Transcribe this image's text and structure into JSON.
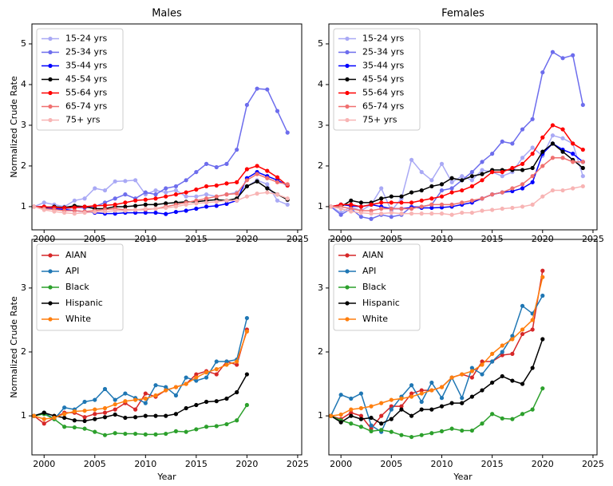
{
  "chart_data": [
    {
      "type": "line",
      "title": "Males",
      "ylabel": "Normalized Crude Rate",
      "x": [
        1999,
        2000,
        2001,
        2002,
        2003,
        2004,
        2005,
        2006,
        2007,
        2008,
        2009,
        2010,
        2011,
        2012,
        2013,
        2014,
        2015,
        2016,
        2017,
        2018,
        2019,
        2020,
        2021,
        2022,
        2023,
        2024
      ],
      "xlim": [
        1998.8,
        2025.4
      ],
      "xticks": [
        2000,
        2005,
        2010,
        2015,
        2020,
        2025
      ],
      "ylim": [
        0.43,
        5.49
      ],
      "yticks": [
        1,
        2,
        3,
        4,
        5
      ],
      "legend": "upper left",
      "series": [
        {
          "name": "15-24 yrs",
          "color": "#a9a9f5",
          "values": [
            1,
            1.1,
            1.05,
            1.0,
            1.15,
            1.2,
            1.45,
            1.4,
            1.62,
            1.63,
            1.65,
            1.3,
            1.4,
            1.35,
            1.4,
            1.25,
            1.25,
            1.3,
            1.25,
            1.3,
            1.35,
            1.5,
            1.65,
            1.55,
            1.15,
            1.05
          ]
        },
        {
          "name": "25-34 yrs",
          "color": "#6d6ded",
          "values": [
            1,
            1.0,
            0.98,
            0.95,
            0.98,
            0.97,
            1.0,
            1.1,
            1.2,
            1.3,
            1.2,
            1.35,
            1.3,
            1.45,
            1.5,
            1.65,
            1.85,
            2.05,
            1.97,
            2.05,
            2.4,
            3.5,
            3.9,
            3.88,
            3.35,
            2.82
          ]
        },
        {
          "name": "35-44 yrs",
          "color": "#0000ff",
          "values": [
            1,
            0.97,
            0.95,
            0.93,
            0.9,
            0.88,
            0.85,
            0.83,
            0.83,
            0.85,
            0.85,
            0.85,
            0.85,
            0.82,
            0.87,
            0.9,
            0.95,
            1.0,
            1.02,
            1.07,
            1.15,
            1.7,
            1.85,
            1.75,
            1.65,
            1.52
          ]
        },
        {
          "name": "45-54 yrs",
          "color": "#000000",
          "values": [
            1,
            0.98,
            1.0,
            0.98,
            1.02,
            1.0,
            0.95,
            0.95,
            1.0,
            1.0,
            1.02,
            1.05,
            1.05,
            1.08,
            1.1,
            1.12,
            1.12,
            1.15,
            1.17,
            1.15,
            1.2,
            1.5,
            1.62,
            1.45,
            1.3,
            1.17
          ]
        },
        {
          "name": "55-64 yrs",
          "color": "#ff0000",
          "values": [
            1,
            1.0,
            0.98,
            0.97,
            0.98,
            1.0,
            1.02,
            1.03,
            1.05,
            1.1,
            1.15,
            1.17,
            1.2,
            1.25,
            1.3,
            1.35,
            1.42,
            1.5,
            1.52,
            1.57,
            1.6,
            1.92,
            2.0,
            1.88,
            1.72,
            1.52
          ]
        },
        {
          "name": "65-74 yrs",
          "color": "#f07070",
          "values": [
            1,
            0.95,
            0.93,
            0.9,
            0.9,
            0.88,
            0.9,
            0.93,
            0.95,
            0.92,
            0.92,
            0.93,
            0.95,
            1.0,
            1.05,
            1.1,
            1.15,
            1.2,
            1.25,
            1.3,
            1.32,
            1.65,
            1.8,
            1.7,
            1.6,
            1.55
          ]
        },
        {
          "name": "75+ yrs",
          "color": "#f8b4b4",
          "values": [
            1,
            0.92,
            0.88,
            0.85,
            0.83,
            0.85,
            0.87,
            0.88,
            0.9,
            0.9,
            0.92,
            0.95,
            0.95,
            0.97,
            1.0,
            1.05,
            1.08,
            1.1,
            1.12,
            1.15,
            1.15,
            1.25,
            1.32,
            1.35,
            1.3,
            1.2
          ]
        }
      ]
    },
    {
      "type": "line",
      "title": "Females",
      "x": [
        1999,
        2000,
        2001,
        2002,
        2003,
        2004,
        2005,
        2006,
        2007,
        2008,
        2009,
        2010,
        2011,
        2012,
        2013,
        2014,
        2015,
        2016,
        2017,
        2018,
        2019,
        2020,
        2021,
        2022,
        2023,
        2024
      ],
      "xlim": [
        1998.8,
        2025.4
      ],
      "xticks": [
        2000,
        2005,
        2010,
        2015,
        2020,
        2025
      ],
      "ylim": [
        0.43,
        5.49
      ],
      "yticks": [
        1,
        2,
        3,
        4,
        5
      ],
      "legend": "upper left",
      "series": [
        {
          "name": "15-24 yrs",
          "color": "#a9a9f5",
          "values": [
            1,
            0.85,
            1.0,
            0.9,
            1.05,
            1.45,
            0.9,
            1.2,
            2.15,
            1.85,
            1.65,
            2.05,
            1.6,
            1.75,
            1.65,
            1.9,
            1.85,
            1.75,
            1.85,
            2.2,
            2.45,
            2.25,
            2.75,
            2.68,
            2.55,
            1.75
          ]
        },
        {
          "name": "25-34 yrs",
          "color": "#6d6ded",
          "values": [
            1,
            0.8,
            0.95,
            0.75,
            0.7,
            0.8,
            0.75,
            0.8,
            1.0,
            1.0,
            1.05,
            1.4,
            1.45,
            1.65,
            1.85,
            2.1,
            2.3,
            2.6,
            2.55,
            2.9,
            3.15,
            4.3,
            4.8,
            4.65,
            4.72,
            3.5
          ]
        },
        {
          "name": "35-44 yrs",
          "color": "#0000ff",
          "values": [
            1,
            1.05,
            1.02,
            1.0,
            1.05,
            1.0,
            0.95,
            0.95,
            0.98,
            0.97,
            0.97,
            0.98,
            1.0,
            1.05,
            1.1,
            1.2,
            1.3,
            1.35,
            1.38,
            1.45,
            1.6,
            2.3,
            2.55,
            2.4,
            2.3,
            2.1
          ]
        },
        {
          "name": "45-54 yrs",
          "color": "#000000",
          "values": [
            1,
            1.0,
            1.15,
            1.1,
            1.1,
            1.2,
            1.25,
            1.25,
            1.35,
            1.4,
            1.5,
            1.55,
            1.7,
            1.65,
            1.75,
            1.8,
            1.9,
            1.9,
            1.9,
            1.9,
            1.95,
            2.35,
            2.55,
            2.35,
            2.15,
            1.95
          ]
        },
        {
          "name": "55-64 yrs",
          "color": "#ff0000",
          "values": [
            1,
            1.05,
            1.05,
            1.0,
            1.05,
            1.1,
            1.1,
            1.1,
            1.1,
            1.15,
            1.2,
            1.25,
            1.35,
            1.4,
            1.5,
            1.65,
            1.85,
            1.85,
            1.95,
            2.05,
            2.3,
            2.7,
            3.0,
            2.9,
            2.55,
            2.4
          ]
        },
        {
          "name": "65-74 yrs",
          "color": "#f07070",
          "values": [
            1,
            1.0,
            0.95,
            0.9,
            0.9,
            0.95,
            0.95,
            0.95,
            0.95,
            1.0,
            1.05,
            1.05,
            1.05,
            1.1,
            1.15,
            1.2,
            1.3,
            1.35,
            1.45,
            1.55,
            1.75,
            2.0,
            2.2,
            2.2,
            2.1,
            2.1
          ]
        },
        {
          "name": "75+ yrs",
          "color": "#f8b4b4",
          "values": [
            1,
            0.95,
            0.88,
            0.85,
            0.83,
            0.83,
            0.85,
            0.83,
            0.83,
            0.83,
            0.83,
            0.83,
            0.8,
            0.85,
            0.85,
            0.9,
            0.92,
            0.95,
            0.97,
            1.0,
            1.05,
            1.25,
            1.4,
            1.4,
            1.45,
            1.5
          ]
        }
      ]
    },
    {
      "type": "line",
      "xlabel": "Year",
      "ylabel": "Normalized Crude Rate",
      "x": [
        1999,
        2000,
        2001,
        2002,
        2003,
        2004,
        2005,
        2006,
        2007,
        2008,
        2009,
        2010,
        2011,
        2012,
        2013,
        2014,
        2015,
        2016,
        2017,
        2018,
        2019,
        2020
      ],
      "xlim": [
        1998.8,
        2025.4
      ],
      "xticks": [
        2000,
        2005,
        2010,
        2015,
        2020,
        2025
      ],
      "ylim": [
        0.39,
        3.76
      ],
      "yticks": [
        1,
        2,
        3
      ],
      "legend": "upper left",
      "series": [
        {
          "name": "AIAN",
          "color": "#d62728",
          "values": [
            1,
            0.88,
            0.97,
            1.05,
            1.05,
            0.98,
            1.03,
            1.05,
            1.1,
            1.2,
            1.1,
            1.35,
            1.3,
            1.4,
            1.45,
            1.5,
            1.65,
            1.7,
            1.65,
            1.85,
            1.8,
            2.35
          ]
        },
        {
          "name": "API",
          "color": "#1f77b4",
          "values": [
            1,
            1.05,
            0.95,
            1.13,
            1.1,
            1.22,
            1.25,
            1.42,
            1.25,
            1.35,
            1.28,
            1.2,
            1.48,
            1.45,
            1.32,
            1.6,
            1.55,
            1.6,
            1.85,
            1.85,
            1.88,
            2.53
          ]
        },
        {
          "name": "Black",
          "color": "#2ca02c",
          "values": [
            1,
            1.03,
            0.95,
            0.83,
            0.82,
            0.8,
            0.75,
            0.7,
            0.73,
            0.72,
            0.72,
            0.71,
            0.71,
            0.72,
            0.76,
            0.75,
            0.79,
            0.83,
            0.84,
            0.87,
            0.93,
            1.17
          ]
        },
        {
          "name": "Hispanic",
          "color": "#000000",
          "values": [
            1,
            1.05,
            1.0,
            0.97,
            0.93,
            0.92,
            0.95,
            0.98,
            1.02,
            0.97,
            0.98,
            1.0,
            1.0,
            1.0,
            1.03,
            1.12,
            1.17,
            1.22,
            1.23,
            1.27,
            1.37,
            1.65
          ]
        },
        {
          "name": "White",
          "color": "#ff7f0e",
          "values": [
            1,
            0.95,
            0.97,
            1.03,
            1.07,
            1.08,
            1.1,
            1.12,
            1.18,
            1.23,
            1.25,
            1.27,
            1.32,
            1.4,
            1.45,
            1.5,
            1.6,
            1.68,
            1.73,
            1.8,
            1.85,
            2.32
          ]
        }
      ]
    },
    {
      "type": "line",
      "xlabel": "Year",
      "x": [
        1999,
        2000,
        2001,
        2002,
        2003,
        2004,
        2005,
        2006,
        2007,
        2008,
        2009,
        2010,
        2011,
        2012,
        2013,
        2014,
        2015,
        2016,
        2017,
        2018,
        2019,
        2020
      ],
      "xlim": [
        1998.8,
        2025.4
      ],
      "xticks": [
        2000,
        2005,
        2010,
        2015,
        2020,
        2025
      ],
      "ylim": [
        0.39,
        3.76
      ],
      "yticks": [
        1,
        2,
        3
      ],
      "legend": "upper left",
      "series": [
        {
          "name": "AIAN",
          "color": "#d62728",
          "values": [
            1,
            0.95,
            1.05,
            1.0,
            0.8,
            1.0,
            1.15,
            1.15,
            1.35,
            1.4,
            1.4,
            1.45,
            1.6,
            1.65,
            1.6,
            1.85,
            1.85,
            1.95,
            1.97,
            2.28,
            2.35,
            3.27
          ]
        },
        {
          "name": "API",
          "color": "#1f77b4",
          "values": [
            1,
            1.33,
            1.27,
            1.35,
            0.85,
            0.75,
            1.1,
            1.3,
            1.48,
            1.22,
            1.52,
            1.28,
            1.6,
            1.28,
            1.75,
            1.65,
            1.85,
            2.0,
            2.25,
            2.72,
            2.6,
            2.88
          ]
        },
        {
          "name": "Black",
          "color": "#2ca02c",
          "values": [
            1,
            0.93,
            0.88,
            0.83,
            0.76,
            0.78,
            0.75,
            0.7,
            0.67,
            0.7,
            0.73,
            0.76,
            0.8,
            0.77,
            0.77,
            0.88,
            1.03,
            0.96,
            0.95,
            1.03,
            1.1,
            1.43
          ]
        },
        {
          "name": "Hispanic",
          "color": "#000000",
          "values": [
            1,
            0.9,
            1.0,
            0.95,
            0.97,
            0.88,
            0.95,
            1.1,
            1.0,
            1.1,
            1.1,
            1.15,
            1.2,
            1.2,
            1.3,
            1.4,
            1.52,
            1.62,
            1.55,
            1.5,
            1.75,
            2.2
          ]
        },
        {
          "name": "White",
          "color": "#ff7f0e",
          "values": [
            1,
            1.02,
            1.1,
            1.12,
            1.15,
            1.2,
            1.25,
            1.27,
            1.3,
            1.35,
            1.4,
            1.45,
            1.6,
            1.65,
            1.7,
            1.8,
            1.97,
            2.1,
            2.2,
            2.35,
            2.5,
            3.17
          ]
        }
      ]
    }
  ]
}
